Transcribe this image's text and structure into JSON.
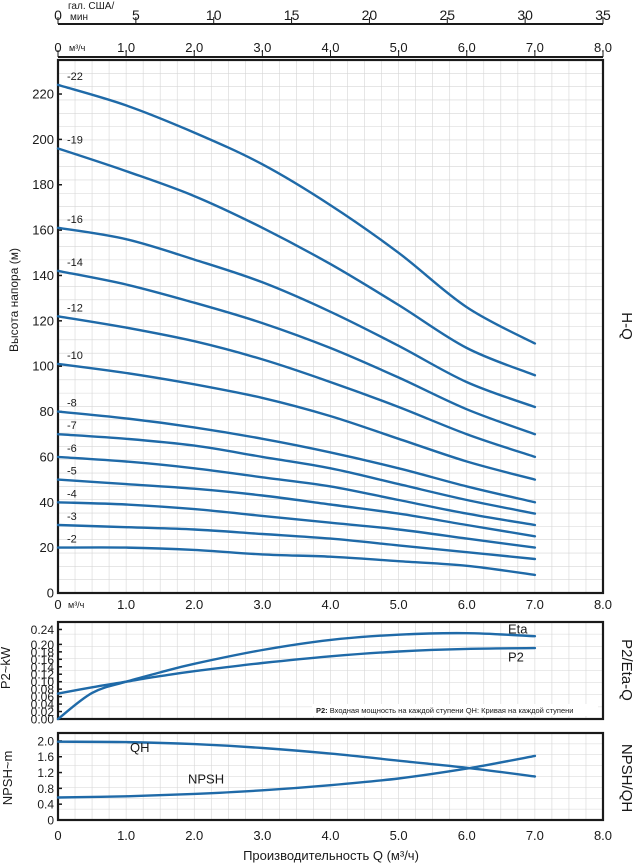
{
  "top_axis": {
    "gpm_unit_line1": "гал. США/",
    "gpm_unit_line2": "мин",
    "gpm_ticks": [
      0,
      5,
      10,
      15,
      20,
      25,
      30,
      35
    ],
    "gpm_max": 35,
    "m3h_unit": "м³/ч",
    "m3h_ticks": [
      "0",
      "1.0",
      "2.0",
      "3.0",
      "4.0",
      "5.0",
      "6.0",
      "7.0",
      "8.0"
    ]
  },
  "x_ticks": [
    "0",
    "1.0",
    "2.0",
    "3.0",
    "4.0",
    "5.0",
    "6.0",
    "7.0",
    "8.0"
  ],
  "x_unit_small": "м³/ч",
  "xlabel": "Производительность Q (м³/ч)",
  "colors": {
    "curve": "#1f6aa8",
    "axis": "#1a1a1a",
    "grid": "#d6d6d6"
  },
  "chart_data": [
    {
      "type": "line",
      "panel_label": "H-Q",
      "ylabel": "Высота напора (м)",
      "xlim": [
        0,
        8
      ],
      "ylim": [
        0,
        235
      ],
      "yticks": [
        "0",
        "20",
        "40",
        "60",
        "80",
        "100",
        "120",
        "140",
        "160",
        "180",
        "200",
        "220"
      ],
      "x": [
        0,
        1,
        2,
        3,
        4,
        5,
        6,
        7
      ],
      "series": [
        {
          "name": "-22",
          "values": [
            224,
            215,
            203,
            189,
            171,
            150,
            126,
            110
          ]
        },
        {
          "name": "-19",
          "values": [
            196,
            186,
            175,
            161,
            145,
            127,
            108,
            96
          ]
        },
        {
          "name": "-16",
          "values": [
            161,
            156,
            147,
            137,
            124,
            109,
            93,
            82
          ]
        },
        {
          "name": "-14",
          "values": [
            142,
            136,
            128,
            119,
            108,
            95,
            81,
            70
          ]
        },
        {
          "name": "-12",
          "values": [
            122,
            117,
            111,
            103,
            93,
            82,
            70,
            60
          ]
        },
        {
          "name": "-10",
          "values": [
            101,
            97,
            92,
            86,
            78,
            68,
            58,
            50
          ]
        },
        {
          "name": "-8",
          "values": [
            80,
            77,
            73,
            68,
            62,
            55,
            47,
            40
          ]
        },
        {
          "name": "-7",
          "values": [
            70,
            68,
            65,
            60,
            55,
            48,
            41,
            35
          ]
        },
        {
          "name": "-6",
          "values": [
            60,
            58,
            55,
            51,
            47,
            41,
            35,
            30
          ]
        },
        {
          "name": "-5",
          "values": [
            50,
            48,
            46,
            43,
            39,
            35,
            30,
            25
          ]
        },
        {
          "name": "-4",
          "values": [
            40,
            39,
            37,
            34,
            31,
            28,
            24,
            20
          ]
        },
        {
          "name": "-3",
          "values": [
            30,
            29,
            28,
            26,
            24,
            21,
            18,
            15
          ]
        },
        {
          "name": "-2",
          "values": [
            20,
            20,
            19,
            17,
            16,
            14,
            12,
            8
          ]
        }
      ]
    },
    {
      "type": "line",
      "panel_label": "P2/Eta-Q",
      "ylabel": "P2~kW",
      "xlim": [
        0,
        8
      ],
      "ylim": [
        0,
        0.26
      ],
      "yticks": [
        "0.00",
        "0.02",
        "0.04",
        "0.06",
        "0.08",
        "0.10",
        "0.12",
        "0.14",
        "0.16",
        "0.18",
        "0.20",
        "0.24"
      ],
      "x": [
        0,
        0.5,
        1,
        1.5,
        2,
        3,
        4,
        5,
        6,
        7
      ],
      "series": [
        {
          "name": "Eta",
          "values": [
            0.0,
            0.07,
            0.1,
            0.125,
            0.148,
            0.185,
            0.212,
            0.226,
            0.23,
            0.222
          ]
        },
        {
          "name": "P2",
          "values": [
            0.068,
            0.085,
            0.1,
            0.115,
            0.128,
            0.15,
            0.168,
            0.181,
            0.188,
            0.19
          ]
        }
      ],
      "annotation_key": "P2:",
      "annotation": "Входная мощность на каждой ступени QH: Кривая на каждой ступени"
    },
    {
      "type": "line",
      "panel_label": "NPSH/QH",
      "ylabel": "NPSH~m",
      "xlim": [
        0,
        8
      ],
      "ylim": [
        0,
        2.2
      ],
      "yticks": [
        "0",
        "0.4",
        "0.8",
        "1.2",
        "1.6",
        "2.0"
      ],
      "x": [
        0,
        1,
        2,
        3,
        4,
        5,
        6,
        7
      ],
      "series": [
        {
          "name": "QH",
          "values": [
            1.98,
            1.97,
            1.92,
            1.82,
            1.68,
            1.5,
            1.32,
            1.1
          ]
        },
        {
          "name": "NPSH",
          "values": [
            0.57,
            0.6,
            0.66,
            0.75,
            0.88,
            1.05,
            1.3,
            1.62
          ]
        }
      ]
    }
  ]
}
